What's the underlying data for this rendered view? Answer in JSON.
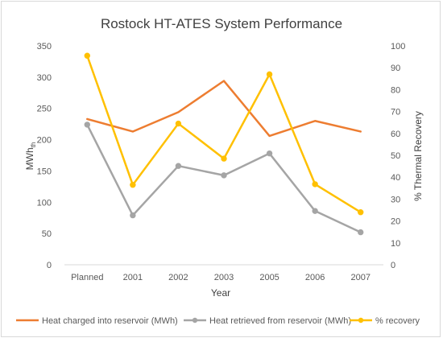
{
  "chart_data": {
    "type": "line",
    "title": "Rostock HT-ATES System Performance",
    "xlabel": "Year",
    "ylabel": "MWh",
    "ylabel_sub": "th",
    "y2label": "% Thermal Recovery",
    "categories": [
      "Planned",
      "2001",
      "2002",
      "2003",
      "2005",
      "2006",
      "2007"
    ],
    "ylim": [
      0,
      350
    ],
    "y_ticks": [
      0,
      50,
      100,
      150,
      200,
      250,
      300,
      350
    ],
    "y2lim": [
      0,
      100
    ],
    "y2_ticks": [
      0,
      10,
      20,
      30,
      40,
      50,
      60,
      70,
      80,
      90,
      100
    ],
    "grid": false,
    "legend_position": "bottom",
    "series": [
      {
        "name": "Heat charged into reservoir (MWh)",
        "axis": "left",
        "color": "#ed7d31",
        "markers": false,
        "values": [
          233,
          213,
          244,
          294,
          206,
          230,
          213
        ]
      },
      {
        "name": "Heat retrieved from reservoir (MWh)",
        "axis": "left",
        "color": "#a5a5a5",
        "markers": true,
        "values": [
          224,
          79,
          158,
          143,
          178,
          86,
          52
        ]
      },
      {
        "name": "% recovery",
        "axis": "right",
        "color": "#ffc000",
        "markers": true,
        "values": [
          95.5,
          36.5,
          64.5,
          48.5,
          87,
          36.8,
          24
        ]
      }
    ]
  }
}
